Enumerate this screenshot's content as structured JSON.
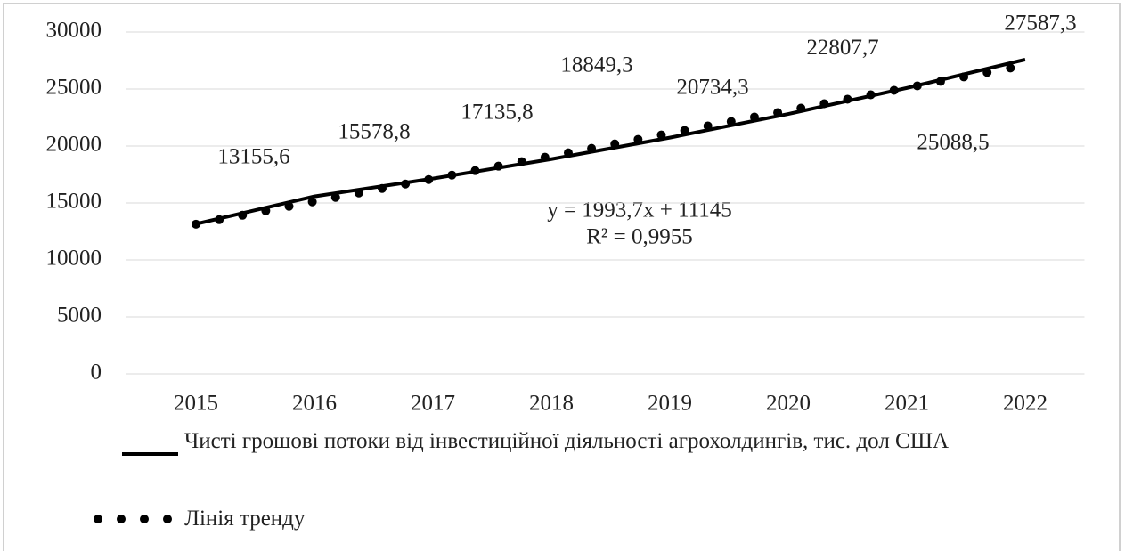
{
  "chart_data": {
    "type": "line",
    "categories": [
      "2015",
      "2016",
      "2017",
      "2018",
      "2019",
      "2020",
      "2021",
      "2022"
    ],
    "series": [
      {
        "name": "Чисті грошові потоки від інвестиційної діяльності  агрохолдингів, тис. дол США",
        "color": "#000000",
        "style": "solid",
        "values": [
          13155.6,
          15578.8,
          17135.8,
          18849.3,
          20734.3,
          22807.7,
          25088.5,
          27587.3
        ],
        "value_labels": [
          "13155,6",
          "15578,8",
          "17135,8",
          "18849,3",
          "20734,3",
          "22807,7",
          "25088,5",
          "27587,3"
        ]
      },
      {
        "name": "Лінія тренду",
        "color": "#000000",
        "style": "dotted",
        "values": [
          13138.7,
          15132.4,
          17126.1,
          19119.8,
          21113.5,
          23107.2,
          25100.9,
          27094.6
        ]
      }
    ],
    "annotations": [
      "y = 1993,7x + 11145",
      "R² = 0,9955"
    ],
    "ylim": [
      0,
      30000
    ],
    "yticks": [
      0,
      5000,
      10000,
      15000,
      20000,
      25000,
      30000
    ],
    "grid": true,
    "legend": "bottom"
  }
}
